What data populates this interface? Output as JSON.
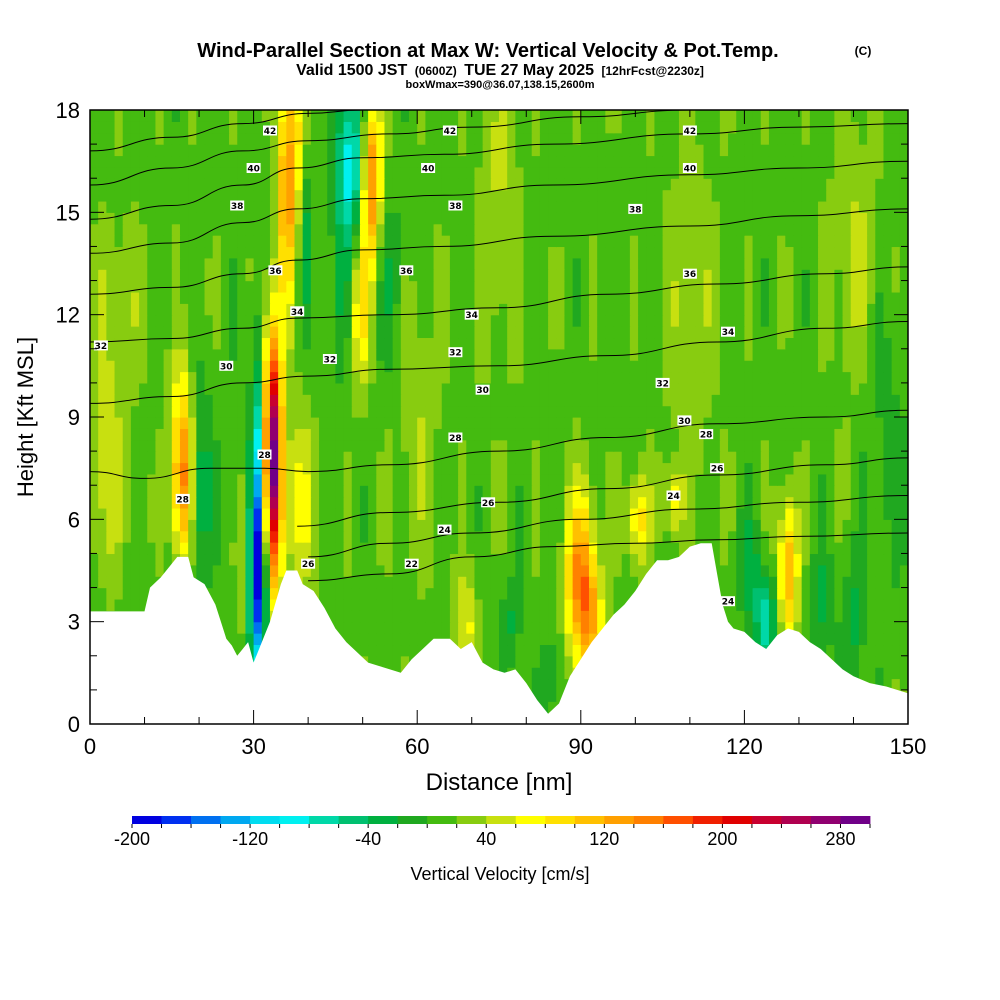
{
  "header": {
    "title_main": "Wind-Parallel Section at Max W: Vertical Velocity & Pot.Temp.",
    "title_copy": "(C)",
    "valid_a": "Valid 1500 JST",
    "valid_b": "(0600Z)",
    "valid_c": "TUE 27 May 2025",
    "valid_d": "[12hrFcst@2230z]",
    "box_info": "boxWmax=390@36.07,138.15,2600m"
  },
  "chart_data": {
    "type": "heatmap",
    "title": "Wind-Parallel Section at Max W: Vertical Velocity & Pot.Temp.",
    "xlabel": "Distance [nm]",
    "ylabel": "Height [Kft MSL]",
    "xlim": [
      0,
      150
    ],
    "ylim": [
      0,
      18
    ],
    "x_ticks": [
      0,
      30,
      60,
      90,
      120,
      150
    ],
    "y_ticks": [
      0,
      3,
      6,
      9,
      12,
      15,
      18
    ],
    "x_tick_labels": [
      "0",
      "30",
      "60",
      "90",
      "120",
      "150"
    ],
    "y_tick_labels": [
      "0",
      "3",
      "6",
      "9",
      "12",
      "15",
      "18"
    ],
    "colorbar": {
      "label": "Vertical Velocity [cm/s]",
      "min": -200,
      "max": 300,
      "step": 20,
      "tick_values": [
        -200,
        -120,
        -40,
        40,
        120,
        200,
        280
      ],
      "tick_labels": [
        "-200",
        "-120",
        "-40",
        "40",
        "120",
        "200",
        "280"
      ],
      "colors": [
        "#0000e0",
        "#0030f0",
        "#0070f0",
        "#00a8f0",
        "#00dcf0",
        "#00f0f0",
        "#00d8a8",
        "#00c070",
        "#00b040",
        "#20a820",
        "#44bb10",
        "#88cc10",
        "#c8e010",
        "#ffff00",
        "#ffe000",
        "#ffc000",
        "#ffa000",
        "#ff8000",
        "#ff5000",
        "#f02000",
        "#e00000",
        "#c80030",
        "#b00050",
        "#900070",
        "#700088"
      ]
    },
    "terrain": [
      [
        0,
        3.3
      ],
      [
        10,
        3.3
      ],
      [
        11,
        4
      ],
      [
        13,
        4.3
      ],
      [
        16,
        4.9
      ],
      [
        18,
        4.9
      ],
      [
        19,
        4.3
      ],
      [
        21,
        4.1
      ],
      [
        23,
        3.5
      ],
      [
        24,
        3
      ],
      [
        25,
        2.5
      ],
      [
        26,
        2.3
      ],
      [
        27,
        2
      ],
      [
        28,
        2.2
      ],
      [
        29,
        2.4
      ],
      [
        30,
        1.8
      ],
      [
        31,
        2.2
      ],
      [
        33,
        3
      ],
      [
        35,
        4.1
      ],
      [
        36,
        4.5
      ],
      [
        38,
        4.5
      ],
      [
        39,
        4.1
      ],
      [
        41,
        3.9
      ],
      [
        43,
        3.4
      ],
      [
        45,
        2.8
      ],
      [
        47,
        2.4
      ],
      [
        49,
        2.1
      ],
      [
        51,
        1.8
      ],
      [
        53,
        1.7
      ],
      [
        55,
        1.6
      ],
      [
        57,
        1.5
      ],
      [
        59,
        1.9
      ],
      [
        61,
        2.2
      ],
      [
        63,
        2.5
      ],
      [
        66,
        2.5
      ],
      [
        68,
        2.2
      ],
      [
        70,
        2.4
      ],
      [
        72,
        1.8
      ],
      [
        74,
        1.6
      ],
      [
        76,
        1.5
      ],
      [
        78,
        1.6
      ],
      [
        80,
        1.2
      ],
      [
        82,
        0.7
      ],
      [
        84,
        0.3
      ],
      [
        86,
        0.6
      ],
      [
        88,
        1.4
      ],
      [
        90,
        1.9
      ],
      [
        92,
        2.4
      ],
      [
        94,
        2.8
      ],
      [
        96,
        3.2
      ],
      [
        98,
        3.5
      ],
      [
        100,
        3.9
      ],
      [
        102,
        4.4
      ],
      [
        104,
        4.8
      ],
      [
        106,
        4.8
      ],
      [
        108,
        4.9
      ],
      [
        110,
        5.2
      ],
      [
        112,
        5.3
      ],
      [
        114,
        5.3
      ],
      [
        115,
        4.4
      ],
      [
        116,
        3.5
      ],
      [
        117,
        3
      ],
      [
        118,
        2.8
      ],
      [
        120,
        2.7
      ],
      [
        122,
        2.4
      ],
      [
        124,
        2.2
      ],
      [
        126,
        2.6
      ],
      [
        128,
        2.8
      ],
      [
        130,
        2.7
      ],
      [
        132,
        2.4
      ],
      [
        134,
        2.2
      ],
      [
        136,
        1.9
      ],
      [
        138,
        1.6
      ],
      [
        140,
        1.4
      ],
      [
        143,
        1.2
      ],
      [
        146,
        1.1
      ],
      [
        148,
        1
      ],
      [
        150,
        0.9
      ]
    ],
    "velocity_background": 12,
    "velocity_cells": [
      {
        "x": 33.5,
        "y": 8.0,
        "sx": 1.2,
        "sy": 2.6,
        "v": 290
      },
      {
        "x": 33.5,
        "y": 9.0,
        "sx": 2.2,
        "sy": 2.2,
        "v": -20
      },
      {
        "x": 30.5,
        "y": 5.5,
        "sx": 1.2,
        "sy": 3.2,
        "v": -170
      },
      {
        "x": 31,
        "y": 4.0,
        "sx": 1.1,
        "sy": 1.6,
        "v": -60
      },
      {
        "x": 17,
        "y": 8.0,
        "sx": 1.6,
        "sy": 1.8,
        "v": 100
      },
      {
        "x": 17,
        "y": 6.5,
        "sx": 1.3,
        "sy": 1.5,
        "v": 60
      },
      {
        "x": 20,
        "y": 7.0,
        "sx": 1.5,
        "sy": 2.0,
        "v": -60
      },
      {
        "x": 28.5,
        "y": 6.5,
        "sx": 1.0,
        "sy": 2.5,
        "v": 90
      },
      {
        "x": 27.5,
        "y": 7.5,
        "sx": 0.9,
        "sy": 2.0,
        "v": -50
      },
      {
        "x": 38,
        "y": 6.5,
        "sx": 2.0,
        "sy": 2.0,
        "v": 60
      },
      {
        "x": 37.5,
        "y": 16.5,
        "sx": 1.2,
        "sy": 2.5,
        "v": 110
      },
      {
        "x": 39,
        "y": 14.5,
        "sx": 1.0,
        "sy": 2.0,
        "v": -60
      },
      {
        "x": 35.5,
        "y": 15.5,
        "sx": 1.0,
        "sy": 2.5,
        "v": 80
      },
      {
        "x": 48,
        "y": 16.5,
        "sx": 2.0,
        "sy": 1.6,
        "v": -110
      },
      {
        "x": 51.5,
        "y": 16.0,
        "sx": 1.4,
        "sy": 1.8,
        "v": 150
      },
      {
        "x": 46,
        "y": 13.0,
        "sx": 1.5,
        "sy": 2.0,
        "v": -30
      },
      {
        "x": 49.5,
        "y": 12.0,
        "sx": 1.3,
        "sy": 1.5,
        "v": 70
      },
      {
        "x": 55,
        "y": 13.0,
        "sx": 2.0,
        "sy": 2.0,
        "v": -30
      },
      {
        "x": 90,
        "y": 4.2,
        "sx": 2.0,
        "sy": 1.8,
        "v": 130
      },
      {
        "x": 92,
        "y": 3.0,
        "sx": 1.6,
        "sy": 1.2,
        "v": 60
      },
      {
        "x": 100.5,
        "y": 6.0,
        "sx": 1.4,
        "sy": 0.9,
        "v": 80
      },
      {
        "x": 107,
        "y": 6.5,
        "sx": 1.2,
        "sy": 0.7,
        "v": 60
      },
      {
        "x": 128,
        "y": 4.5,
        "sx": 1.3,
        "sy": 1.5,
        "v": 110
      },
      {
        "x": 124,
        "y": 3.0,
        "sx": 1.5,
        "sy": 1.0,
        "v": -80
      },
      {
        "x": 121,
        "y": 4.5,
        "sx": 1.5,
        "sy": 1.2,
        "v": -40
      },
      {
        "x": 134,
        "y": 3.5,
        "sx": 1.5,
        "sy": 1.2,
        "v": -40
      },
      {
        "x": 140,
        "y": 3.0,
        "sx": 1.5,
        "sy": 1.2,
        "v": -40
      },
      {
        "x": 69,
        "y": 2.8,
        "sx": 1.5,
        "sy": 1.2,
        "v": 55
      },
      {
        "x": 77,
        "y": 2.8,
        "sx": 1.4,
        "sy": 1.0,
        "v": -35
      },
      {
        "x": 85,
        "y": 1.5,
        "sx": 1.5,
        "sy": 1.0,
        "v": -30
      },
      {
        "x": 146,
        "y": 8.0,
        "sx": 3.0,
        "sy": 3.0,
        "v": -20
      },
      {
        "x": 5,
        "y": 12.0,
        "sx": 3.0,
        "sy": 2.0,
        "v": 30
      },
      {
        "x": 3,
        "y": 7.0,
        "sx": 2.0,
        "sy": 2.0,
        "v": 45
      },
      {
        "x": 60,
        "y": 9.0,
        "sx": 3.0,
        "sy": 3.0,
        "v": 25
      },
      {
        "x": 75,
        "y": 15.0,
        "sx": 3.0,
        "sy": 3.0,
        "v": 30
      },
      {
        "x": 110,
        "y": 12.0,
        "sx": 3.5,
        "sy": 3.5,
        "v": 25
      },
      {
        "x": 140,
        "y": 14.0,
        "sx": 3.0,
        "sy": 3.0,
        "v": 30
      }
    ],
    "theta_contours": [
      {
        "level": 22,
        "points": [
          [
            40,
            4.2
          ],
          [
            55,
            4.4
          ],
          [
            70,
            4.9
          ],
          [
            85,
            5.2
          ],
          [
            100,
            5.3
          ],
          [
            115,
            5.4
          ],
          [
            130,
            5.5
          ],
          [
            150,
            5.6
          ]
        ]
      },
      {
        "level": 24,
        "points": [
          [
            40,
            4.9
          ],
          [
            55,
            5.3
          ],
          [
            70,
            5.6
          ],
          [
            90,
            6.0
          ],
          [
            110,
            6.3
          ],
          [
            130,
            6.5
          ],
          [
            150,
            6.7
          ]
        ]
      },
      {
        "level": 26,
        "points": [
          [
            38,
            5.8
          ],
          [
            55,
            6.2
          ],
          [
            75,
            6.5
          ],
          [
            95,
            6.9
          ],
          [
            115,
            7.3
          ],
          [
            135,
            7.6
          ],
          [
            150,
            7.8
          ]
        ]
      },
      {
        "level": 28,
        "points": [
          [
            0,
            7.4
          ],
          [
            10,
            7.2
          ],
          [
            22,
            7.5
          ],
          [
            32,
            7.5
          ],
          [
            40,
            7.4
          ],
          [
            55,
            7.6
          ],
          [
            75,
            8.0
          ],
          [
            95,
            8.4
          ],
          [
            115,
            8.8
          ],
          [
            135,
            9.0
          ],
          [
            150,
            9.2
          ]
        ]
      },
      {
        "level": 30,
        "points": [
          [
            0,
            9.4
          ],
          [
            15,
            9.6
          ],
          [
            28,
            10.0
          ],
          [
            40,
            10.2
          ],
          [
            55,
            10.4
          ],
          [
            75,
            10.5
          ],
          [
            95,
            10.8
          ],
          [
            115,
            11.2
          ],
          [
            135,
            11.6
          ],
          [
            150,
            11.8
          ]
        ]
      },
      {
        "level": 32,
        "points": [
          [
            0,
            11.2
          ],
          [
            15,
            11.3
          ],
          [
            28,
            11.6
          ],
          [
            38,
            11.9
          ],
          [
            55,
            12.0
          ],
          [
            75,
            12.2
          ],
          [
            95,
            12.6
          ],
          [
            115,
            12.9
          ],
          [
            135,
            13.2
          ],
          [
            150,
            13.4
          ]
        ]
      },
      {
        "level": 34,
        "points": [
          [
            0,
            12.6
          ],
          [
            15,
            12.8
          ],
          [
            28,
            13.2
          ],
          [
            38,
            13.6
          ],
          [
            50,
            13.9
          ],
          [
            65,
            14.0
          ],
          [
            85,
            14.3
          ],
          [
            110,
            14.6
          ],
          [
            130,
            14.9
          ],
          [
            150,
            15.1
          ]
        ]
      },
      {
        "level": 36,
        "points": [
          [
            0,
            13.8
          ],
          [
            15,
            14.1
          ],
          [
            28,
            14.7
          ],
          [
            38,
            15.1
          ],
          [
            50,
            15.4
          ],
          [
            65,
            15.5
          ],
          [
            85,
            15.8
          ],
          [
            110,
            16.1
          ],
          [
            130,
            16.3
          ],
          [
            150,
            16.5
          ]
        ]
      },
      {
        "level": 38,
        "points": [
          [
            0,
            14.8
          ],
          [
            15,
            15.2
          ],
          [
            28,
            15.8
          ],
          [
            38,
            16.3
          ],
          [
            50,
            16.6
          ],
          [
            65,
            16.7
          ],
          [
            85,
            17.0
          ],
          [
            110,
            17.3
          ],
          [
            130,
            17.5
          ],
          [
            150,
            17.6
          ]
        ]
      },
      {
        "level": 40,
        "points": [
          [
            0,
            15.8
          ],
          [
            15,
            16.3
          ],
          [
            28,
            16.8
          ],
          [
            40,
            17.1
          ],
          [
            55,
            17.3
          ],
          [
            70,
            17.5
          ],
          [
            90,
            17.8
          ],
          [
            110,
            18.0
          ]
        ]
      },
      {
        "level": 42,
        "points": [
          [
            0,
            16.8
          ],
          [
            15,
            17.2
          ],
          [
            28,
            17.6
          ],
          [
            40,
            17.9
          ],
          [
            50,
            18.0
          ]
        ]
      }
    ],
    "contour_labels": [
      {
        "text": "42",
        "x": 33,
        "y": 17.4
      },
      {
        "text": "42",
        "x": 66,
        "y": 17.4
      },
      {
        "text": "42",
        "x": 110,
        "y": 17.4
      },
      {
        "text": "40",
        "x": 30,
        "y": 16.3
      },
      {
        "text": "40",
        "x": 62,
        "y": 16.3
      },
      {
        "text": "40",
        "x": 110,
        "y": 16.3
      },
      {
        "text": "38",
        "x": 27,
        "y": 15.2
      },
      {
        "text": "38",
        "x": 67,
        "y": 15.2
      },
      {
        "text": "38",
        "x": 100,
        "y": 15.1
      },
      {
        "text": "36",
        "x": 34,
        "y": 13.3
      },
      {
        "text": "36",
        "x": 58,
        "y": 13.3
      },
      {
        "text": "36",
        "x": 110,
        "y": 13.2
      },
      {
        "text": "34",
        "x": 38,
        "y": 12.1
      },
      {
        "text": "34",
        "x": 70,
        "y": 12.0
      },
      {
        "text": "34",
        "x": 117,
        "y": 11.5
      },
      {
        "text": "32",
        "x": 2,
        "y": 11.1
      },
      {
        "text": "32",
        "x": 44,
        "y": 10.7
      },
      {
        "text": "32",
        "x": 67,
        "y": 10.9
      },
      {
        "text": "32",
        "x": 105,
        "y": 10.0
      },
      {
        "text": "30",
        "x": 25,
        "y": 10.5
      },
      {
        "text": "30",
        "x": 72,
        "y": 9.8
      },
      {
        "text": "30",
        "x": 109,
        "y": 8.9
      },
      {
        "text": "28",
        "x": 113,
        "y": 8.5
      },
      {
        "text": "28",
        "x": 67,
        "y": 8.4
      },
      {
        "text": "28",
        "x": 32,
        "y": 7.9
      },
      {
        "text": "28",
        "x": 17,
        "y": 6.6
      },
      {
        "text": "26",
        "x": 73,
        "y": 6.5
      },
      {
        "text": "26",
        "x": 115,
        "y": 7.5
      },
      {
        "text": "24",
        "x": 65,
        "y": 5.7
      },
      {
        "text": "24",
        "x": 107,
        "y": 6.7
      },
      {
        "text": "24",
        "x": 117,
        "y": 3.6
      },
      {
        "text": "22",
        "x": 59,
        "y": 4.7
      },
      {
        "text": "26",
        "x": 40,
        "y": 4.7
      }
    ]
  }
}
